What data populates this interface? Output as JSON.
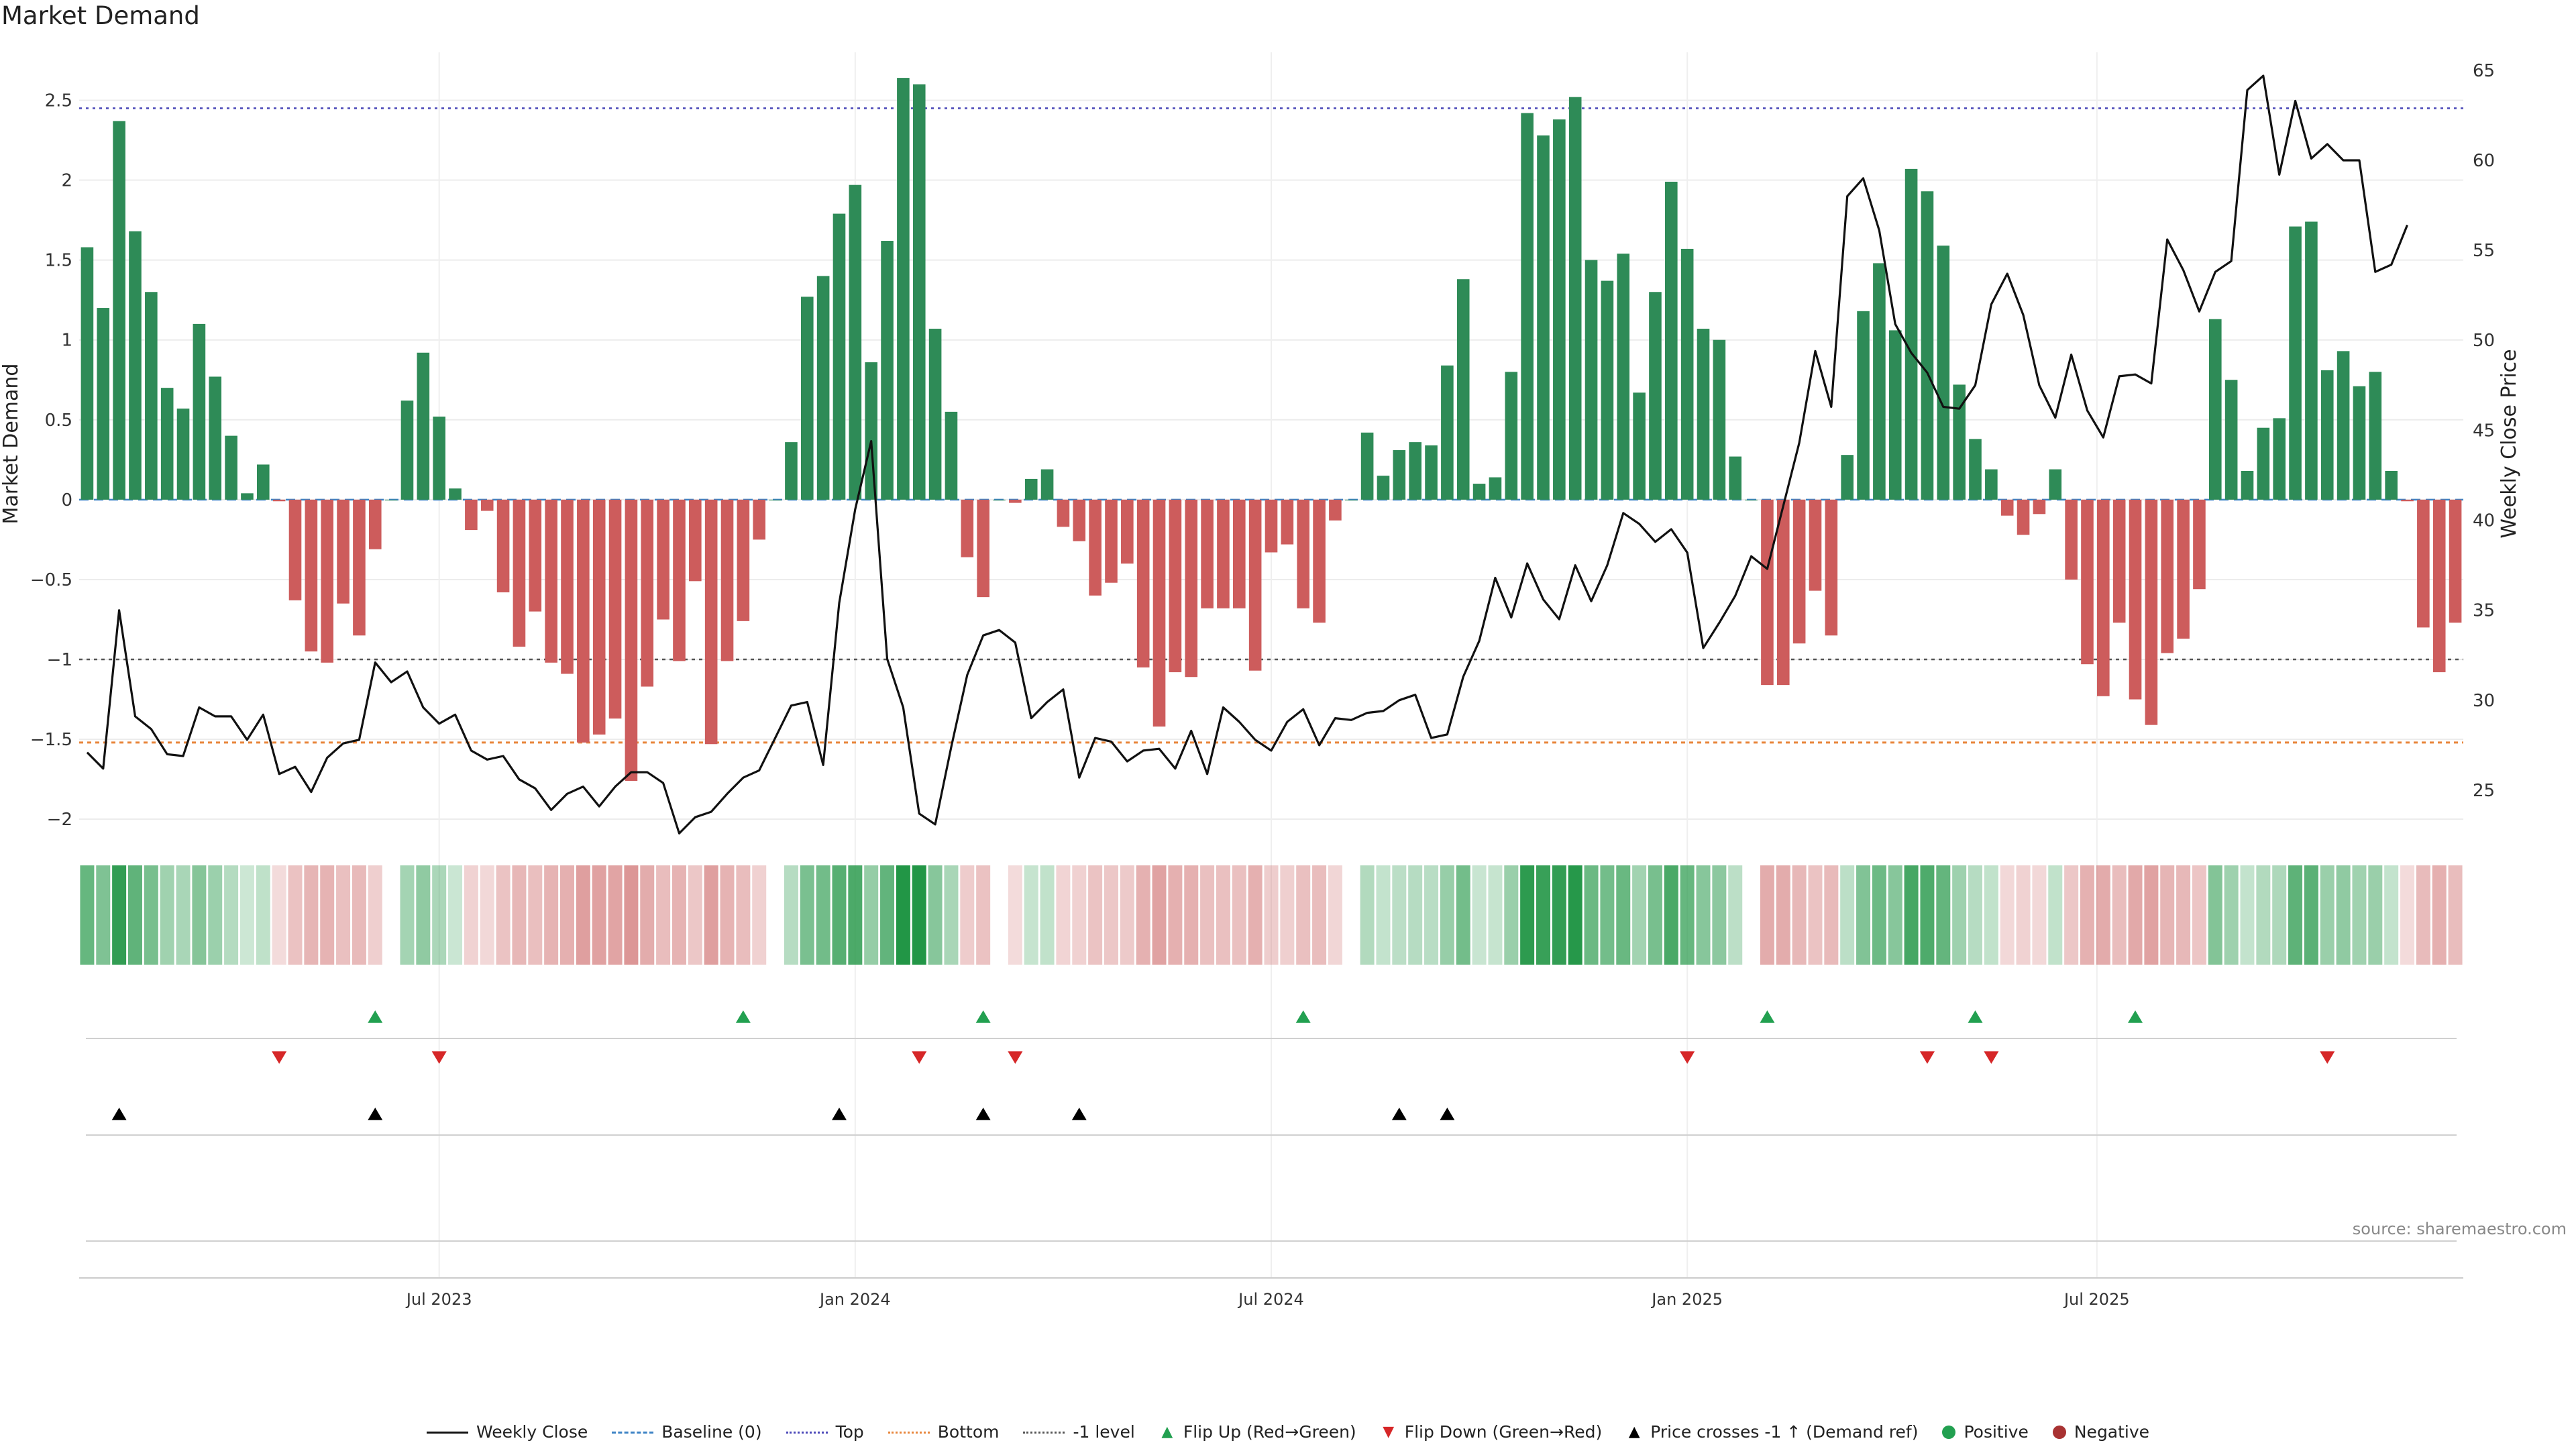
{
  "title": "Market Demand",
  "source": "source: sharemaestro.com",
  "colors": {
    "positive": "#2e8b57",
    "negative": "#cd5c5c",
    "top_line": "#4a47b8",
    "bottom_line": "#e8853a",
    "level_line": "#555555",
    "flip_up": "#22a050",
    "flip_down": "#d62728",
    "cross": "#000000"
  },
  "legend": {
    "weekly_close": "Weekly Close",
    "baseline": "Baseline (0)",
    "top": "Top",
    "bottom": "Bottom",
    "minus1": "-1 level",
    "flip_up": "Flip Up (Red→Green)",
    "flip_down": "Flip Down (Green→Red)",
    "cross": "Price crosses -1 ↑ (Demand ref)",
    "positive": "Positive",
    "negative": "Negative"
  },
  "chart_data": {
    "type": "bar",
    "title": "Market Demand",
    "ylabel": "Market Demand",
    "y2label": "Weekly Close Price",
    "ylim": [
      -2.1,
      2.8
    ],
    "y2lim": [
      22.5,
      66
    ],
    "yticks": [
      2.5,
      2,
      1.5,
      1,
      0.5,
      0,
      -0.5,
      -1,
      -1.5,
      -2
    ],
    "ytick_labels": [
      "2.5",
      "2",
      "1.5",
      "1",
      "0.5",
      "0",
      "−0.5",
      "−1",
      "−1.5",
      "−2"
    ],
    "y2ticks": [
      65,
      60,
      55,
      50,
      45,
      40,
      35,
      30,
      25
    ],
    "y2tick_labels": [
      "65",
      "60",
      "55",
      "50",
      "45",
      "40",
      "35",
      "30",
      "25"
    ],
    "reference_lines": {
      "top": 2.45,
      "bottom": -1.52,
      "minus1": -1.0,
      "baseline": 0
    },
    "date_ticks": [
      {
        "week": 22,
        "label": "Jul 2023"
      },
      {
        "week": 48,
        "label": "Jan 2024"
      },
      {
        "week": 74,
        "label": "Jul 2024"
      },
      {
        "week": 100,
        "label": "Jan 2025"
      },
      {
        "week": 125.6,
        "label": "Jul 2025"
      }
    ],
    "demand": [
      1.58,
      1.2,
      2.37,
      1.68,
      1.3,
      0.7,
      0.57,
      1.1,
      0.77,
      0.4,
      0.04,
      0.22,
      -0.01,
      -0.63,
      -0.95,
      -1.02,
      -0.65,
      -0.85,
      -0.31,
      0,
      0.62,
      0.92,
      0.52,
      0.07,
      -0.19,
      -0.07,
      -0.58,
      -0.92,
      -0.7,
      -1.02,
      -1.09,
      -1.52,
      -1.47,
      -1.37,
      -1.76,
      -1.17,
      -0.75,
      -1.01,
      -0.51,
      -1.53,
      -1.01,
      -0.76,
      -0.25,
      0,
      0.36,
      1.27,
      1.4,
      1.79,
      1.97,
      0.86,
      1.62,
      2.64,
      2.6,
      1.07,
      0.55,
      -0.36,
      -0.61,
      0,
      -0.02,
      0.13,
      0.19,
      -0.17,
      -0.26,
      -0.6,
      -0.52,
      -0.4,
      -1.05,
      -1.42,
      -1.08,
      -1.11,
      -0.68,
      -0.68,
      -0.68,
      -1.07,
      -0.33,
      -0.28,
      -0.68,
      -0.77,
      -0.13,
      0,
      0.42,
      0.15,
      0.31,
      0.36,
      0.34,
      0.84,
      1.38,
      0.1,
      0.14,
      0.8,
      2.42,
      2.28,
      2.38,
      2.52,
      1.5,
      1.37,
      1.54,
      0.67,
      1.3,
      1.99,
      1.57,
      1.07,
      1.0,
      0.27,
      0,
      -1.16,
      -1.16,
      -0.9,
      -0.57,
      -0.85,
      0.28,
      1.18,
      1.48,
      1.06,
      2.07,
      1.93,
      1.59,
      0.72,
      0.38,
      0.19,
      -0.1,
      -0.22,
      -0.09,
      0.19,
      -0.5,
      -1.03,
      -1.23,
      -0.77,
      -1.25,
      -1.41,
      -0.96,
      -0.87,
      -0.56,
      1.13,
      0.75,
      0.18,
      0.45,
      0.51,
      1.71,
      1.74,
      0.81,
      0.93,
      0.71,
      0.8,
      0.18,
      -0.01,
      -0.8,
      -1.08,
      -0.77
    ],
    "price": [
      27.1,
      26.2,
      35.0,
      29.1,
      28.4,
      27.0,
      26.9,
      29.6,
      29.1,
      29.1,
      27.8,
      29.2,
      25.9,
      26.3,
      24.9,
      26.8,
      27.6,
      27.8,
      32.1,
      31.0,
      31.6,
      29.6,
      28.7,
      29.2,
      27.2,
      26.7,
      26.9,
      25.6,
      25.1,
      23.9,
      24.8,
      25.2,
      24.1,
      25.2,
      26.0,
      26.0,
      25.4,
      22.6,
      23.5,
      23.8,
      24.8,
      25.7,
      26.1,
      27.9,
      29.7,
      29.9,
      26.4,
      35.4,
      40.6,
      44.4,
      32.3,
      29.6,
      23.7,
      23.1,
      27.4,
      31.4,
      33.6,
      33.9,
      33.2,
      29.0,
      29.9,
      30.6,
      25.7,
      27.9,
      27.7,
      26.6,
      27.2,
      27.3,
      26.2,
      28.3,
      25.9,
      29.6,
      28.8,
      27.8,
      27.2,
      28.8,
      29.5,
      27.5,
      29.0,
      28.9,
      29.3,
      29.4,
      30.0,
      30.3,
      27.9,
      28.1,
      31.3,
      33.3,
      36.8,
      34.6,
      37.6,
      35.6,
      34.5,
      37.5,
      35.5,
      37.5,
      40.4,
      39.8,
      38.8,
      39.5,
      38.2,
      32.9,
      34.3,
      35.8,
      38.0,
      37.3,
      40.8,
      44.3,
      49.4,
      46.3,
      58.0,
      59.0,
      56.1,
      50.9,
      49.3,
      48.2,
      46.3,
      46.2,
      47.5,
      52.0,
      53.7,
      51.4,
      47.5,
      45.7,
      49.2,
      46.1,
      44.6,
      48.0,
      48.1,
      47.6,
      55.6,
      53.9,
      51.6,
      53.8,
      54.4,
      63.9,
      64.7,
      59.2,
      63.3,
      60.1,
      60.9,
      60.0,
      60.0,
      53.8,
      54.2,
      56.4
    ],
    "flip_up_weeks": [
      18,
      41,
      56,
      76,
      105,
      118,
      128
    ],
    "flip_down_weeks": [
      12,
      22,
      52,
      58,
      100,
      115,
      119,
      140
    ],
    "cross_up_weeks": [
      2,
      18,
      47,
      56,
      62,
      82,
      85
    ]
  }
}
